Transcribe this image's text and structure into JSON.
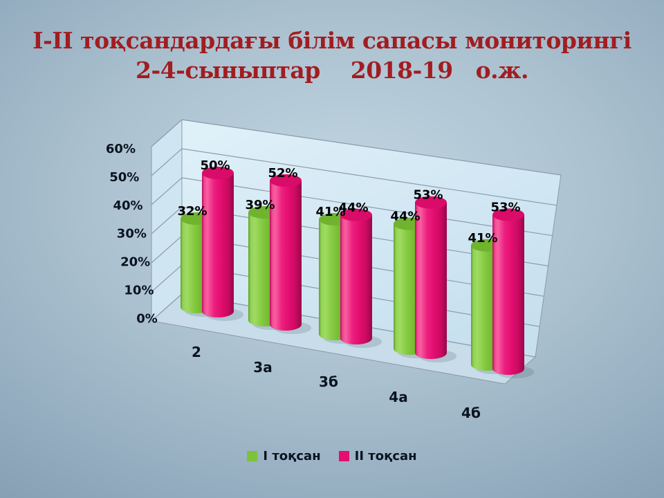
{
  "slide": {
    "title": {
      "line1": "І-ІІ тоқсандардағы білім сапасы мониторингі",
      "line2": "2-4-сыныптар    2018-19   о.ж.",
      "color": "#a11d21"
    }
  },
  "chart_data": {
    "type": "bar",
    "variant": "3d-cylinder",
    "title": "",
    "categories": [
      "2",
      "3а",
      "3б",
      "4а",
      "4б"
    ],
    "series": [
      {
        "name": "І тоқсан",
        "color": "#7cc23a",
        "values": [
          32,
          39,
          41,
          44,
          41
        ]
      },
      {
        "name": "ІІ тоқсан",
        "color": "#e60d72",
        "values": [
          50,
          52,
          44,
          53,
          53
        ]
      }
    ],
    "data_labels": {
      "visible": true,
      "suffix": "%"
    },
    "value_axis": {
      "min": 0,
      "max": 60,
      "step": 10,
      "tick_labels": [
        "0%",
        "10%",
        "20%",
        "30%",
        "40%",
        "50%",
        "60%"
      ]
    },
    "legend": {
      "position": "bottom"
    },
    "grid": true,
    "colors": {
      "wall_fill": "#d9ecf6",
      "gridline": "#8d9cab",
      "label_text": "#000000"
    }
  }
}
